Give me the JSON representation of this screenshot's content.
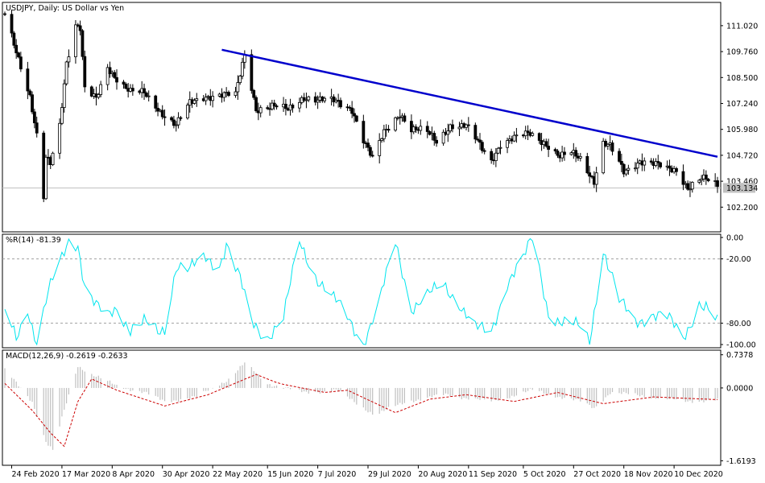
{
  "chart_data": [
    {
      "type": "candlestick",
      "title": "USDJPY, Daily:  US Dollar vs Yen",
      "y_ticks": [
        111.02,
        109.76,
        108.5,
        107.24,
        105.98,
        104.72,
        103.46,
        102.2
      ],
      "y_tick_labels": [
        "111.020",
        "109.760",
        "108.500",
        "107.240",
        "105.980",
        "104.720",
        "103.460",
        "102.200"
      ],
      "ylim": [
        101.0,
        112.15
      ],
      "current_price": "103.134",
      "trendline": {
        "start": {
          "date": "2020-05-26",
          "value": 109.85
        },
        "end": {
          "date": "2020-12-29",
          "value": 104.65
        },
        "color": "#0000cc"
      },
      "anchors": [
        {
          "date": "2020-02-21",
          "value": 111.6
        },
        {
          "date": "2020-02-27",
          "value": 109.5
        },
        {
          "date": "2020-03-03",
          "value": 107.6
        },
        {
          "date": "2020-03-06",
          "value": 105.6
        },
        {
          "date": "2020-03-09",
          "value": 102.6
        },
        {
          "date": "2020-03-10",
          "value": 104.5
        },
        {
          "date": "2020-03-12",
          "value": 104.3
        },
        {
          "date": "2020-03-16",
          "value": 106.2
        },
        {
          "date": "2020-03-19",
          "value": 109.3
        },
        {
          "date": "2020-03-23",
          "value": 111.1
        },
        {
          "date": "2020-03-25",
          "value": 110.9
        },
        {
          "date": "2020-03-27",
          "value": 107.9
        },
        {
          "date": "2020-04-01",
          "value": 107.4
        },
        {
          "date": "2020-04-06",
          "value": 109.0
        },
        {
          "date": "2020-04-10",
          "value": 108.5
        },
        {
          "date": "2020-04-16",
          "value": 107.8
        },
        {
          "date": "2020-04-22",
          "value": 107.7
        },
        {
          "date": "2020-04-28",
          "value": 107.0
        },
        {
          "date": "2020-05-01",
          "value": 106.7
        },
        {
          "date": "2020-05-06",
          "value": 106.2
        },
        {
          "date": "2020-05-12",
          "value": 107.2
        },
        {
          "date": "2020-05-19",
          "value": 107.6
        },
        {
          "date": "2020-05-25",
          "value": 107.7
        },
        {
          "date": "2020-06-01",
          "value": 107.6
        },
        {
          "date": "2020-06-05",
          "value": 109.6
        },
        {
          "date": "2020-06-10",
          "value": 107.0
        },
        {
          "date": "2020-06-17",
          "value": 107.1
        },
        {
          "date": "2020-06-24",
          "value": 106.9
        },
        {
          "date": "2020-07-01",
          "value": 107.6
        },
        {
          "date": "2020-07-08",
          "value": 107.4
        },
        {
          "date": "2020-07-15",
          "value": 107.3
        },
        {
          "date": "2020-07-22",
          "value": 107.0
        },
        {
          "date": "2020-07-27",
          "value": 105.5
        },
        {
          "date": "2020-07-31",
          "value": 104.5
        },
        {
          "date": "2020-08-05",
          "value": 105.8
        },
        {
          "date": "2020-08-12",
          "value": 106.8
        },
        {
          "date": "2020-08-17",
          "value": 106.0
        },
        {
          "date": "2020-08-24",
          "value": 105.8
        },
        {
          "date": "2020-08-28",
          "value": 105.4
        },
        {
          "date": "2020-09-03",
          "value": 106.2
        },
        {
          "date": "2020-09-10",
          "value": 106.1
        },
        {
          "date": "2020-09-16",
          "value": 105.2
        },
        {
          "date": "2020-09-21",
          "value": 104.5
        },
        {
          "date": "2020-09-25",
          "value": 105.3
        },
        {
          "date": "2020-10-01",
          "value": 105.5
        },
        {
          "date": "2020-10-08",
          "value": 105.8
        },
        {
          "date": "2020-10-14",
          "value": 105.4
        },
        {
          "date": "2020-10-21",
          "value": 104.6
        },
        {
          "date": "2020-10-26",
          "value": 104.8
        },
        {
          "date": "2020-10-30",
          "value": 104.6
        },
        {
          "date": "2020-11-05",
          "value": 103.5
        },
        {
          "date": "2020-11-09",
          "value": 105.3
        },
        {
          "date": "2020-11-12",
          "value": 105.1
        },
        {
          "date": "2020-11-18",
          "value": 103.9
        },
        {
          "date": "2020-11-25",
          "value": 104.5
        },
        {
          "date": "2020-12-01",
          "value": 104.3
        },
        {
          "date": "2020-12-07",
          "value": 104.0
        },
        {
          "date": "2020-12-11",
          "value": 104.0
        },
        {
          "date": "2020-12-16",
          "value": 103.2
        },
        {
          "date": "2020-12-22",
          "value": 103.6
        },
        {
          "date": "2020-12-29",
          "value": 103.2
        }
      ]
    },
    {
      "type": "line",
      "title": "%R(14) -81.39",
      "y_tick_labels": [
        "0.00",
        "-20.00",
        "-80.00",
        "-100.00"
      ],
      "y_ticks": [
        0,
        -20,
        -80,
        -100
      ],
      "levels": [
        -20,
        -80
      ],
      "ylim": [
        -103,
        3
      ],
      "color": "#00e5ee",
      "anchors": [
        {
          "date": "2020-02-21",
          "value": -70
        },
        {
          "date": "2020-02-26",
          "value": -95
        },
        {
          "date": "2020-03-02",
          "value": -65
        },
        {
          "date": "2020-03-06",
          "value": -98
        },
        {
          "date": "2020-03-10",
          "value": -60
        },
        {
          "date": "2020-03-13",
          "value": -40
        },
        {
          "date": "2020-03-17",
          "value": -20
        },
        {
          "date": "2020-03-20",
          "value": -2
        },
        {
          "date": "2020-03-24",
          "value": -5
        },
        {
          "date": "2020-03-27",
          "value": -45
        },
        {
          "date": "2020-04-01",
          "value": -65
        },
        {
          "date": "2020-04-06",
          "value": -75
        },
        {
          "date": "2020-04-10",
          "value": -65
        },
        {
          "date": "2020-04-16",
          "value": -85
        },
        {
          "date": "2020-04-22",
          "value": -80
        },
        {
          "date": "2020-04-28",
          "value": -90
        },
        {
          "date": "2020-05-01",
          "value": -85
        },
        {
          "date": "2020-05-06",
          "value": -25
        },
        {
          "date": "2020-05-12",
          "value": -30
        },
        {
          "date": "2020-05-19",
          "value": -20
        },
        {
          "date": "2020-05-25",
          "value": -25
        },
        {
          "date": "2020-05-28",
          "value": -5
        },
        {
          "date": "2020-06-03",
          "value": -40
        },
        {
          "date": "2020-06-08",
          "value": -80
        },
        {
          "date": "2020-06-15",
          "value": -92
        },
        {
          "date": "2020-06-22",
          "value": -75
        },
        {
          "date": "2020-06-29",
          "value": -5
        },
        {
          "date": "2020-07-06",
          "value": -35
        },
        {
          "date": "2020-07-13",
          "value": -55
        },
        {
          "date": "2020-07-20",
          "value": -75
        },
        {
          "date": "2020-07-27",
          "value": -98
        },
        {
          "date": "2020-08-03",
          "value": -60
        },
        {
          "date": "2020-08-10",
          "value": -5
        },
        {
          "date": "2020-08-17",
          "value": -65
        },
        {
          "date": "2020-08-24",
          "value": -55
        },
        {
          "date": "2020-08-31",
          "value": -45
        },
        {
          "date": "2020-09-07",
          "value": -60
        },
        {
          "date": "2020-09-14",
          "value": -85
        },
        {
          "date": "2020-09-21",
          "value": -90
        },
        {
          "date": "2020-09-28",
          "value": -40
        },
        {
          "date": "2020-10-05",
          "value": -20
        },
        {
          "date": "2020-10-09",
          "value": -2
        },
        {
          "date": "2020-10-16",
          "value": -70
        },
        {
          "date": "2020-10-23",
          "value": -80
        },
        {
          "date": "2020-10-30",
          "value": -85
        },
        {
          "date": "2020-11-03",
          "value": -98
        },
        {
          "date": "2020-11-09",
          "value": -10
        },
        {
          "date": "2020-11-16",
          "value": -60
        },
        {
          "date": "2020-11-23",
          "value": -80
        },
        {
          "date": "2020-11-30",
          "value": -70
        },
        {
          "date": "2020-12-07",
          "value": -75
        },
        {
          "date": "2020-12-14",
          "value": -95
        },
        {
          "date": "2020-12-21",
          "value": -60
        },
        {
          "date": "2020-12-24",
          "value": -65
        },
        {
          "date": "2020-12-29",
          "value": -81
        }
      ]
    },
    {
      "type": "bar+line",
      "title": "MACD(12,26,9) -0.2619 -0.2633",
      "y_tick_labels": [
        "0.7378",
        "0.0000",
        "-1.6193"
      ],
      "y_ticks": [
        0.7378,
        0,
        -1.6193
      ],
      "ylim": [
        -1.72,
        0.84
      ],
      "histogram_color": "#c0c0c0",
      "signal_color": "#cc0000",
      "macd_anchors": [
        {
          "date": "2020-02-21",
          "value": 0.4
        },
        {
          "date": "2020-03-04",
          "value": -0.3
        },
        {
          "date": "2020-03-10",
          "value": -1.2
        },
        {
          "date": "2020-03-13",
          "value": -1.4
        },
        {
          "date": "2020-03-18",
          "value": -0.5
        },
        {
          "date": "2020-03-24",
          "value": 0.5
        },
        {
          "date": "2020-03-30",
          "value": 0.3
        },
        {
          "date": "2020-04-10",
          "value": 0.05
        },
        {
          "date": "2020-04-22",
          "value": -0.1
        },
        {
          "date": "2020-05-01",
          "value": -0.3
        },
        {
          "date": "2020-05-15",
          "value": -0.2
        },
        {
          "date": "2020-05-29",
          "value": 0.2
        },
        {
          "date": "2020-06-05",
          "value": 0.55
        },
        {
          "date": "2020-06-15",
          "value": 0.1
        },
        {
          "date": "2020-07-01",
          "value": -0.1
        },
        {
          "date": "2020-07-15",
          "value": -0.05
        },
        {
          "date": "2020-08-01",
          "value": -0.6
        },
        {
          "date": "2020-08-15",
          "value": -0.3
        },
        {
          "date": "2020-09-01",
          "value": -0.15
        },
        {
          "date": "2020-09-21",
          "value": -0.3
        },
        {
          "date": "2020-10-09",
          "value": -0.05
        },
        {
          "date": "2020-10-30",
          "value": -0.3
        },
        {
          "date": "2020-11-05",
          "value": -0.45
        },
        {
          "date": "2020-11-12",
          "value": -0.1
        },
        {
          "date": "2020-12-01",
          "value": -0.2
        },
        {
          "date": "2020-12-15",
          "value": -0.3
        },
        {
          "date": "2020-12-29",
          "value": -0.26
        }
      ],
      "signal_anchors": [
        {
          "date": "2020-02-21",
          "value": 0.1
        },
        {
          "date": "2020-03-04",
          "value": -0.5
        },
        {
          "date": "2020-03-12",
          "value": -1.0
        },
        {
          "date": "2020-03-18",
          "value": -1.3
        },
        {
          "date": "2020-03-24",
          "value": -0.3
        },
        {
          "date": "2020-03-30",
          "value": 0.2
        },
        {
          "date": "2020-04-10",
          "value": -0.05
        },
        {
          "date": "2020-05-01",
          "value": -0.4
        },
        {
          "date": "2020-05-20",
          "value": -0.15
        },
        {
          "date": "2020-06-10",
          "value": 0.3
        },
        {
          "date": "2020-06-20",
          "value": 0.1
        },
        {
          "date": "2020-07-10",
          "value": -0.1
        },
        {
          "date": "2020-07-20",
          "value": -0.05
        },
        {
          "date": "2020-08-10",
          "value": -0.55
        },
        {
          "date": "2020-08-25",
          "value": -0.25
        },
        {
          "date": "2020-09-10",
          "value": -0.15
        },
        {
          "date": "2020-10-01",
          "value": -0.3
        },
        {
          "date": "2020-10-20",
          "value": -0.1
        },
        {
          "date": "2020-11-09",
          "value": -0.35
        },
        {
          "date": "2020-12-01",
          "value": -0.2
        },
        {
          "date": "2020-12-29",
          "value": -0.26
        }
      ]
    }
  ],
  "x_axis": {
    "labels": [
      {
        "date": "2020-02-24",
        "text": "24 Feb 2020"
      },
      {
        "date": "2020-03-17",
        "text": "17 Mar 2020"
      },
      {
        "date": "2020-04-08",
        "text": "8 Apr 2020"
      },
      {
        "date": "2020-04-30",
        "text": "30 Apr 2020"
      },
      {
        "date": "2020-05-22",
        "text": "22 May 2020"
      },
      {
        "date": "2020-06-15",
        "text": "15 Jun 2020"
      },
      {
        "date": "2020-07-07",
        "text": "7 Jul 2020"
      },
      {
        "date": "2020-07-29",
        "text": "29 Jul 2020"
      },
      {
        "date": "2020-08-20",
        "text": "20 Aug 2020"
      },
      {
        "date": "2020-09-11",
        "text": "11 Sep 2020"
      },
      {
        "date": "2020-10-05",
        "text": "5 Oct 2020"
      },
      {
        "date": "2020-10-27",
        "text": "27 Oct 2020"
      },
      {
        "date": "2020-11-18",
        "text": "18 Nov 2020"
      },
      {
        "date": "2020-12-10",
        "text": "10 Dec 2020"
      }
    ],
    "range": [
      "2020-02-21",
      "2020-12-29"
    ]
  }
}
